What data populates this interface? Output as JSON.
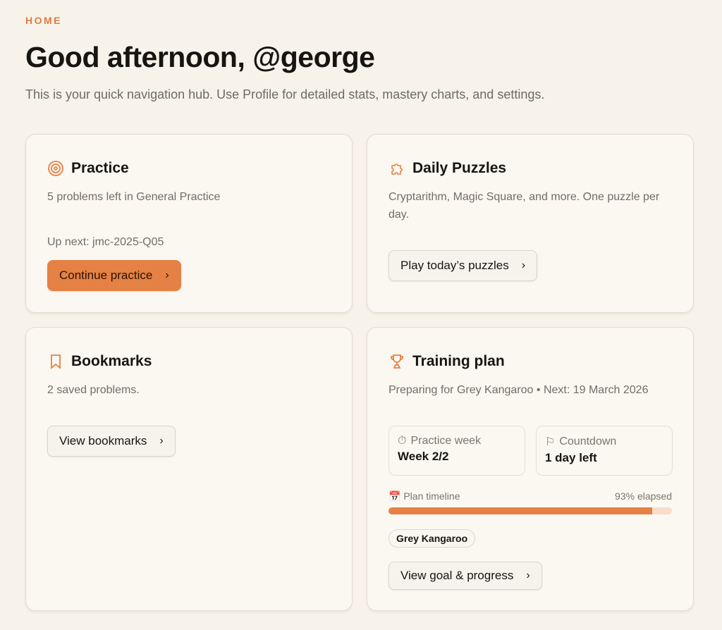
{
  "header": {
    "eyebrow": "HOME",
    "title": "Good afternoon, @george",
    "subtitle": "This is your quick navigation hub. Use Profile for detailed stats, mastery charts, and settings."
  },
  "accent": "#e58144",
  "practice": {
    "icon": "target-icon",
    "title": "Practice",
    "desc": "5 problems left in General Practice",
    "next": "Up next: jmc-2025-Q05",
    "button": "Continue practice"
  },
  "puzzles": {
    "icon": "puzzle-icon",
    "title": "Daily Puzzles",
    "desc": "Cryptarithm, Magic Square, and more. One puzzle per day.",
    "button": "Play today’s puzzles"
  },
  "bookmarks": {
    "icon": "bookmark-icon",
    "title": "Bookmarks",
    "desc": "2 saved problems.",
    "button": "View bookmarks"
  },
  "training": {
    "icon": "trophy-icon",
    "title": "Training plan",
    "desc": "Preparing for Grey Kangaroo • Next: 19 March 2026",
    "week_label": "Practice week",
    "week_value": "Week 2/2",
    "countdown_label": "Countdown",
    "countdown_value": "1 day left",
    "timeline_label": "Plan timeline",
    "elapsed_text": "93% elapsed",
    "elapsed_percent": 93,
    "chip": "Grey Kangaroo",
    "button": "View goal & progress"
  }
}
